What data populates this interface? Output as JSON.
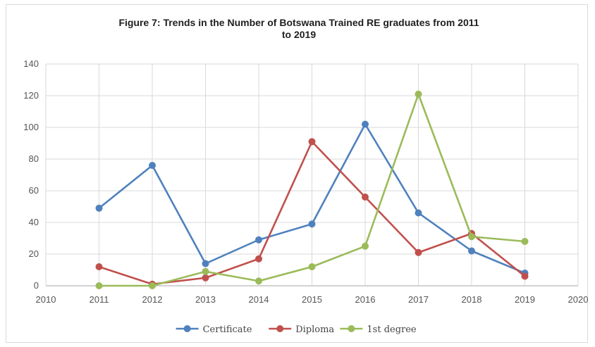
{
  "chart_data": {
    "type": "line",
    "title_lines": [
      "Figure 7: Trends in the Number of Botswana Trained RE graduates from 2011",
      "to 2019"
    ],
    "xlabel": "",
    "ylabel": "",
    "xlim": [
      2010,
      2020
    ],
    "ylim": [
      0,
      140
    ],
    "x_ticks": [
      2010,
      2011,
      2012,
      2013,
      2014,
      2015,
      2016,
      2017,
      2018,
      2019,
      2020
    ],
    "y_ticks": [
      0,
      20,
      40,
      60,
      80,
      100,
      120,
      140
    ],
    "grid": true,
    "legend_position": "bottom",
    "x": [
      2011,
      2012,
      2013,
      2014,
      2015,
      2016,
      2017,
      2018,
      2019
    ],
    "series": [
      {
        "name": "Certificate",
        "color": "#4f81bd",
        "values": [
          49,
          76,
          14,
          29,
          39,
          102,
          46,
          22,
          8
        ]
      },
      {
        "name": "Diploma",
        "color": "#c0504d",
        "values": [
          12,
          1,
          5,
          17,
          91,
          56,
          21,
          33,
          6
        ]
      },
      {
        "name": "1st degree",
        "color": "#9bbb59",
        "values": [
          0,
          0,
          9,
          3,
          12,
          25,
          121,
          31,
          28
        ]
      }
    ]
  }
}
